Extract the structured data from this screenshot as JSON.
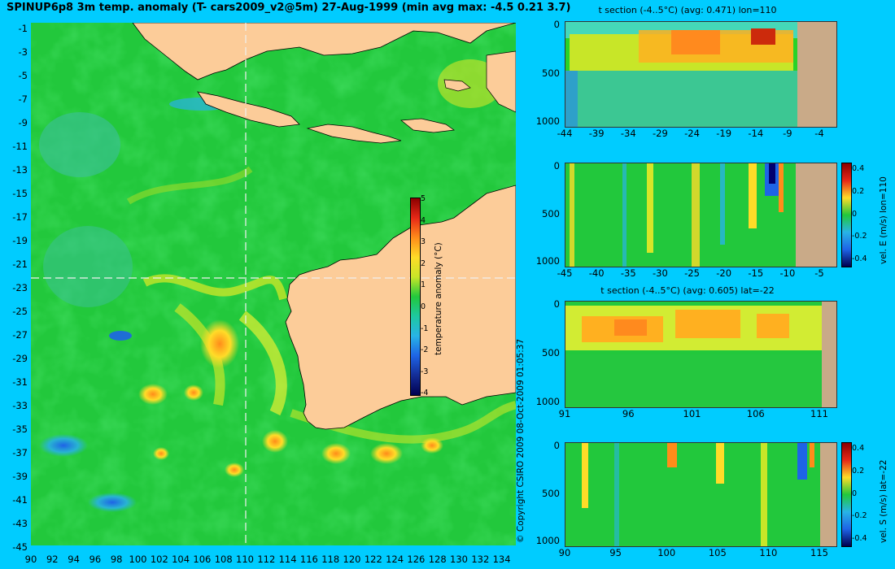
{
  "map": {
    "title": "SPINUP6p8 3m temp. anomaly (T- cars2009_v2@5m) 27-Aug-1999 (min avg max: -4.5 0.21 3.7)",
    "lat_ticks": [
      "-1",
      "-3",
      "-5",
      "-7",
      "-9",
      "-11",
      "-13",
      "-15",
      "-17",
      "-19",
      "-21",
      "-23",
      "-25",
      "-27",
      "-29",
      "-31",
      "-33",
      "-35",
      "-37",
      "-39",
      "-41",
      "-43",
      "-45"
    ],
    "lon_ticks": [
      "90",
      "92",
      "94",
      "96",
      "98",
      "100",
      "102",
      "104",
      "106",
      "108",
      "110",
      "112",
      "114",
      "116",
      "118",
      "120",
      "122",
      "124",
      "126",
      "128",
      "130",
      "132",
      "134"
    ],
    "colorbar": {
      "ticks": [
        "5",
        "4",
        "3",
        "2",
        "1",
        "0",
        "-1",
        "-2",
        "-3",
        "-4"
      ],
      "label": "temperature anomaly (°C)"
    },
    "copyright": "© Copyright CSIRO 2009   08-Oct-2009 01:05:37",
    "colors": {
      "land": "#fccc99",
      "ocean_base": "#22c83c",
      "background": "#00ccff"
    }
  },
  "panels": [
    {
      "title": "t section (-4..5°C) (avg: 0.471) lon=110",
      "xticks": [
        "-44",
        "-39",
        "-34",
        "-29",
        "-24",
        "-19",
        "-14",
        "-9",
        "-4"
      ],
      "yticks": [
        "0",
        "500",
        "1000"
      ],
      "colorbar_label": "",
      "colorbar_ticks": []
    },
    {
      "title": "",
      "xticks": [
        "-45",
        "-40",
        "-35",
        "-30",
        "-25",
        "-20",
        "-15",
        "-10",
        "-5"
      ],
      "yticks": [
        "0",
        "500",
        "1000"
      ],
      "colorbar_label": "vel. E (m/s) lon=110",
      "colorbar_ticks": [
        "0.4",
        "0.2",
        "0",
        "-0.2",
        "-0.4"
      ]
    },
    {
      "title": "t section (-4..5°C) (avg: 0.605) lat=-22",
      "xticks": [
        "91",
        "96",
        "101",
        "106",
        "111"
      ],
      "yticks": [
        "0",
        "500",
        "1000"
      ],
      "colorbar_label": "",
      "colorbar_ticks": []
    },
    {
      "title": "",
      "xticks": [
        "90",
        "95",
        "100",
        "105",
        "110",
        "115"
      ],
      "yticks": [
        "0",
        "500",
        "1000"
      ],
      "colorbar_label": "vel. S (m/s) lat=-22",
      "colorbar_ticks": [
        "0.4",
        "0.2",
        "0",
        "-0.2",
        "-0.4"
      ]
    }
  ]
}
